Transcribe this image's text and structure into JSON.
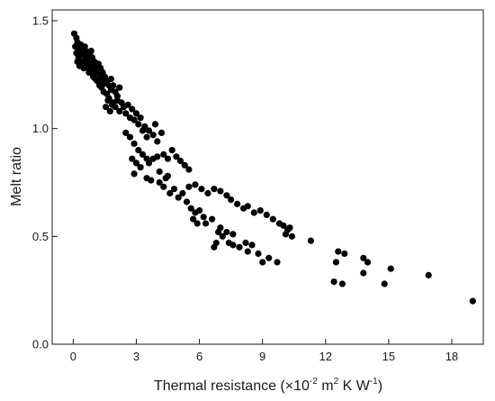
{
  "chart_data": {
    "type": "scatter",
    "xlabel_main": "Thermal resistance (",
    "xlabel_unit_prefix": "×10",
    "xlabel_exp1": "-2",
    "xlabel_unit_m": " m",
    "xlabel_exp2": "2",
    "xlabel_unit_kw": " K W",
    "xlabel_exp3": "-1",
    "xlabel_close": ")",
    "ylabel": "Melt ratio",
    "xlim": [
      -1,
      19.5
    ],
    "ylim": [
      0.0,
      1.55
    ],
    "x_ticks": [
      "0",
      "3",
      "6",
      "9",
      "12",
      "15",
      "18"
    ],
    "x_tick_values": [
      0,
      3,
      6,
      9,
      12,
      15,
      18
    ],
    "y_ticks": [
      "0.0",
      "0.5",
      "1.0",
      "1.5"
    ],
    "y_tick_values": [
      0.0,
      0.5,
      1.0,
      1.5
    ],
    "grid": false,
    "point_color": "#000000",
    "points": [
      [
        0.05,
        1.44
      ],
      [
        0.1,
        1.38
      ],
      [
        0.15,
        1.35
      ],
      [
        0.2,
        1.4
      ],
      [
        0.25,
        1.33
      ],
      [
        0.3,
        1.36
      ],
      [
        0.35,
        1.39
      ],
      [
        0.4,
        1.31
      ],
      [
        0.45,
        1.37
      ],
      [
        0.5,
        1.34
      ],
      [
        0.55,
        1.3
      ],
      [
        0.6,
        1.36
      ],
      [
        0.65,
        1.32
      ],
      [
        0.7,
        1.28
      ],
      [
        0.75,
        1.35
      ],
      [
        0.8,
        1.3
      ],
      [
        0.85,
        1.27
      ],
      [
        0.9,
        1.33
      ],
      [
        0.95,
        1.29
      ],
      [
        1.0,
        1.25
      ],
      [
        0.2,
        1.31
      ],
      [
        0.3,
        1.29
      ],
      [
        0.4,
        1.36
      ],
      [
        0.5,
        1.28
      ],
      [
        0.6,
        1.33
      ],
      [
        0.7,
        1.31
      ],
      [
        0.8,
        1.34
      ],
      [
        0.9,
        1.27
      ],
      [
        1.0,
        1.31
      ],
      [
        1.1,
        1.29
      ],
      [
        1.05,
        1.23
      ],
      [
        1.1,
        1.27
      ],
      [
        1.15,
        1.22
      ],
      [
        1.2,
        1.26
      ],
      [
        1.25,
        1.2
      ],
      [
        1.3,
        1.24
      ],
      [
        1.35,
        1.19
      ],
      [
        1.4,
        1.22
      ],
      [
        1.45,
        1.17
      ],
      [
        1.5,
        1.21
      ],
      [
        1.2,
        1.3
      ],
      [
        1.3,
        1.28
      ],
      [
        1.4,
        1.26
      ],
      [
        1.5,
        1.24
      ],
      [
        1.6,
        1.22
      ],
      [
        1.7,
        1.2
      ],
      [
        1.8,
        1.18
      ],
      [
        1.6,
        1.16
      ],
      [
        1.7,
        1.14
      ],
      [
        1.8,
        1.23
      ],
      [
        1.9,
        1.2
      ],
      [
        2.0,
        1.17
      ],
      [
        2.1,
        1.15
      ],
      [
        2.2,
        1.19
      ],
      [
        1.9,
        1.12
      ],
      [
        2.0,
        1.1
      ],
      [
        2.1,
        1.13
      ],
      [
        2.2,
        1.08
      ],
      [
        2.3,
        1.12
      ],
      [
        2.4,
        1.1
      ],
      [
        1.55,
        1.1
      ],
      [
        1.65,
        1.13
      ],
      [
        1.75,
        1.08
      ],
      [
        1.85,
        1.11
      ],
      [
        2.5,
        1.07
      ],
      [
        2.6,
        1.11
      ],
      [
        2.7,
        1.05
      ],
      [
        2.8,
        1.09
      ],
      [
        2.9,
        1.04
      ],
      [
        3.0,
        1.07
      ],
      [
        0.15,
        1.42
      ],
      [
        0.25,
        1.37
      ],
      [
        0.35,
        1.34
      ],
      [
        0.45,
        1.3
      ],
      [
        0.55,
        1.38
      ],
      [
        0.65,
        1.29
      ],
      [
        0.75,
        1.26
      ],
      [
        0.85,
        1.36
      ],
      [
        0.95,
        1.24
      ],
      [
        1.15,
        1.3
      ],
      [
        3.1,
        1.02
      ],
      [
        3.2,
        1.05
      ],
      [
        3.3,
        0.99
      ],
      [
        3.4,
        1.01
      ],
      [
        3.5,
        0.96
      ],
      [
        3.6,
        0.99
      ],
      [
        3.8,
        0.97
      ],
      [
        4.0,
        0.94
      ],
      [
        3.9,
        1.02
      ],
      [
        4.2,
        0.98
      ],
      [
        2.5,
        0.98
      ],
      [
        2.7,
        0.96
      ],
      [
        2.9,
        0.93
      ],
      [
        3.1,
        0.9
      ],
      [
        3.3,
        0.88
      ],
      [
        3.5,
        0.86
      ],
      [
        2.8,
        0.86
      ],
      [
        3.0,
        0.84
      ],
      [
        3.2,
        0.82
      ],
      [
        2.9,
        0.79
      ],
      [
        3.6,
        0.84
      ],
      [
        3.8,
        0.86
      ],
      [
        4.0,
        0.87
      ],
      [
        4.3,
        0.88
      ],
      [
        4.5,
        0.86
      ],
      [
        4.7,
        0.9
      ],
      [
        4.9,
        0.87
      ],
      [
        5.1,
        0.85
      ],
      [
        5.3,
        0.83
      ],
      [
        5.5,
        0.81
      ],
      [
        3.5,
        0.77
      ],
      [
        3.7,
        0.76
      ],
      [
        4.1,
        0.75
      ],
      [
        4.3,
        0.73
      ],
      [
        4.4,
        0.77
      ],
      [
        4.6,
        0.7
      ],
      [
        4.8,
        0.72
      ],
      [
        5.0,
        0.68
      ],
      [
        5.2,
        0.7
      ],
      [
        5.4,
        0.66
      ],
      [
        4.1,
        0.8
      ],
      [
        4.5,
        0.78
      ],
      [
        5.6,
        0.63
      ],
      [
        5.8,
        0.61
      ],
      [
        6.0,
        0.62
      ],
      [
        6.2,
        0.59
      ],
      [
        5.7,
        0.58
      ],
      [
        5.9,
        0.56
      ],
      [
        6.3,
        0.56
      ],
      [
        6.6,
        0.58
      ],
      [
        6.9,
        0.52
      ],
      [
        7.1,
        0.5
      ],
      [
        6.8,
        0.47
      ],
      [
        6.7,
        0.45
      ],
      [
        7.4,
        0.47
      ],
      [
        7.6,
        0.46
      ],
      [
        7.9,
        0.45
      ],
      [
        8.2,
        0.47
      ],
      [
        8.5,
        0.46
      ],
      [
        8.3,
        0.43
      ],
      [
        5.5,
        0.73
      ],
      [
        5.8,
        0.74
      ],
      [
        6.1,
        0.72
      ],
      [
        6.4,
        0.7
      ],
      [
        6.7,
        0.72
      ],
      [
        7.0,
        0.71
      ],
      [
        7.3,
        0.69
      ],
      [
        7.5,
        0.67
      ],
      [
        7.8,
        0.65
      ],
      [
        8.1,
        0.63
      ],
      [
        8.3,
        0.64
      ],
      [
        8.6,
        0.61
      ],
      [
        8.9,
        0.62
      ],
      [
        9.2,
        0.6
      ],
      [
        9.5,
        0.58
      ],
      [
        9.8,
        0.56
      ],
      [
        10.0,
        0.55
      ],
      [
        10.2,
        0.53
      ],
      [
        10.4,
        0.5
      ],
      [
        10.3,
        0.54
      ],
      [
        7.0,
        0.54
      ],
      [
        7.3,
        0.52
      ],
      [
        7.6,
        0.51
      ],
      [
        8.8,
        0.42
      ],
      [
        9.0,
        0.38
      ],
      [
        9.3,
        0.4
      ],
      [
        9.7,
        0.38
      ],
      [
        10.1,
        0.51
      ],
      [
        11.3,
        0.48
      ],
      [
        12.4,
        0.29
      ],
      [
        12.6,
        0.43
      ],
      [
        12.9,
        0.42
      ],
      [
        12.5,
        0.38
      ],
      [
        12.8,
        0.28
      ],
      [
        13.8,
        0.4
      ],
      [
        14.0,
        0.38
      ],
      [
        13.8,
        0.33
      ],
      [
        14.8,
        0.28
      ],
      [
        15.1,
        0.35
      ],
      [
        16.9,
        0.32
      ],
      [
        19.0,
        0.2
      ]
    ]
  }
}
